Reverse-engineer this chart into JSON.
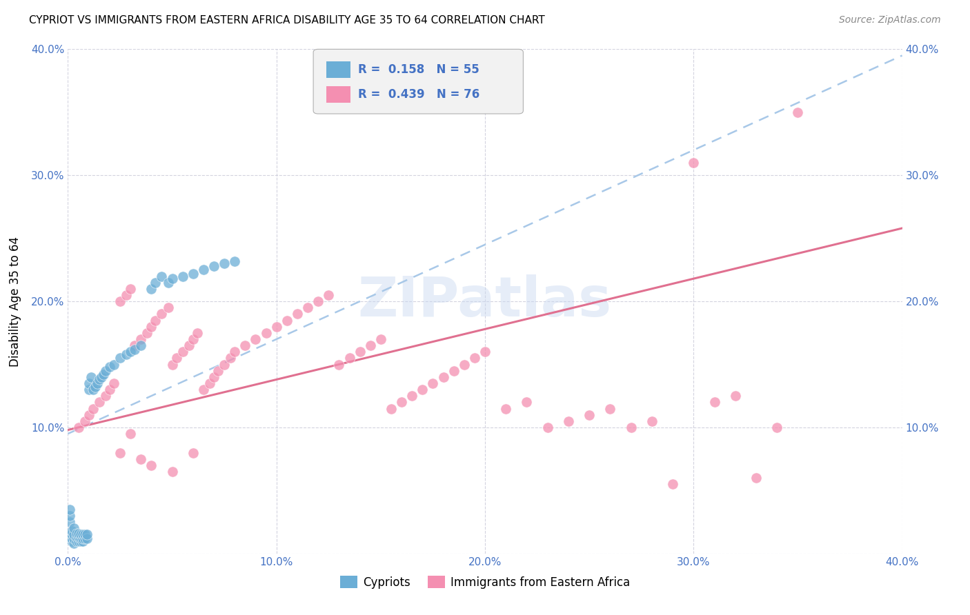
{
  "title": "CYPRIOT VS IMMIGRANTS FROM EASTERN AFRICA DISABILITY AGE 35 TO 64 CORRELATION CHART",
  "source": "Source: ZipAtlas.com",
  "ylabel": "Disability Age 35 to 64",
  "xlim": [
    0.0,
    0.4
  ],
  "ylim": [
    0.0,
    0.4
  ],
  "cypriot_color": "#6baed6",
  "immigrant_color": "#f48fb1",
  "trend_blue_color": "#a8c8e8",
  "trend_pink_color": "#e07090",
  "legend_label1": "Cypriots",
  "legend_label2": "Immigrants from Eastern Africa",
  "R1": "0.158",
  "N1": "55",
  "R2": "0.439",
  "N2": "76",
  "cypriot_x": [
    0.001,
    0.001,
    0.001,
    0.002,
    0.002,
    0.002,
    0.002,
    0.003,
    0.003,
    0.003,
    0.003,
    0.004,
    0.004,
    0.004,
    0.005,
    0.005,
    0.005,
    0.006,
    0.006,
    0.006,
    0.007,
    0.007,
    0.007,
    0.008,
    0.008,
    0.009,
    0.009,
    0.01,
    0.01,
    0.011,
    0.012,
    0.013,
    0.014,
    0.015,
    0.016,
    0.017,
    0.018,
    0.02,
    0.022,
    0.025,
    0.028,
    0.03,
    0.032,
    0.035,
    0.04,
    0.042,
    0.045,
    0.048,
    0.05,
    0.055,
    0.06,
    0.065,
    0.07,
    0.075,
    0.08
  ],
  "cypriot_y": [
    0.025,
    0.03,
    0.035,
    0.01,
    0.012,
    0.015,
    0.018,
    0.008,
    0.012,
    0.015,
    0.02,
    0.01,
    0.013,
    0.016,
    0.01,
    0.013,
    0.016,
    0.01,
    0.012,
    0.015,
    0.01,
    0.012,
    0.015,
    0.012,
    0.015,
    0.012,
    0.015,
    0.13,
    0.135,
    0.14,
    0.13,
    0.132,
    0.135,
    0.138,
    0.14,
    0.142,
    0.145,
    0.148,
    0.15,
    0.155,
    0.158,
    0.16,
    0.162,
    0.165,
    0.21,
    0.215,
    0.22,
    0.215,
    0.218,
    0.22,
    0.222,
    0.225,
    0.228,
    0.23,
    0.232
  ],
  "immigrant_x": [
    0.005,
    0.008,
    0.01,
    0.012,
    0.015,
    0.018,
    0.02,
    0.022,
    0.025,
    0.028,
    0.03,
    0.032,
    0.035,
    0.038,
    0.04,
    0.042,
    0.045,
    0.048,
    0.05,
    0.052,
    0.055,
    0.058,
    0.06,
    0.062,
    0.065,
    0.068,
    0.07,
    0.072,
    0.075,
    0.078,
    0.08,
    0.085,
    0.09,
    0.095,
    0.1,
    0.105,
    0.11,
    0.115,
    0.12,
    0.125,
    0.13,
    0.135,
    0.14,
    0.145,
    0.15,
    0.155,
    0.16,
    0.165,
    0.17,
    0.175,
    0.18,
    0.185,
    0.19,
    0.195,
    0.2,
    0.21,
    0.22,
    0.23,
    0.24,
    0.25,
    0.26,
    0.27,
    0.28,
    0.29,
    0.3,
    0.31,
    0.32,
    0.33,
    0.34,
    0.35,
    0.025,
    0.03,
    0.035,
    0.04,
    0.05,
    0.06
  ],
  "immigrant_y": [
    0.1,
    0.105,
    0.11,
    0.115,
    0.12,
    0.125,
    0.13,
    0.135,
    0.2,
    0.205,
    0.21,
    0.165,
    0.17,
    0.175,
    0.18,
    0.185,
    0.19,
    0.195,
    0.15,
    0.155,
    0.16,
    0.165,
    0.17,
    0.175,
    0.13,
    0.135,
    0.14,
    0.145,
    0.15,
    0.155,
    0.16,
    0.165,
    0.17,
    0.175,
    0.18,
    0.185,
    0.19,
    0.195,
    0.2,
    0.205,
    0.15,
    0.155,
    0.16,
    0.165,
    0.17,
    0.115,
    0.12,
    0.125,
    0.13,
    0.135,
    0.14,
    0.145,
    0.15,
    0.155,
    0.16,
    0.115,
    0.12,
    0.1,
    0.105,
    0.11,
    0.115,
    0.1,
    0.105,
    0.055,
    0.31,
    0.12,
    0.125,
    0.06,
    0.1,
    0.35,
    0.08,
    0.095,
    0.075,
    0.07,
    0.065,
    0.08
  ],
  "blue_trend_x0": 0.0,
  "blue_trend_y0": 0.095,
  "blue_trend_x1": 0.4,
  "blue_trend_y1": 0.395,
  "pink_trend_x0": 0.0,
  "pink_trend_y0": 0.098,
  "pink_trend_x1": 0.4,
  "pink_trend_y1": 0.258
}
